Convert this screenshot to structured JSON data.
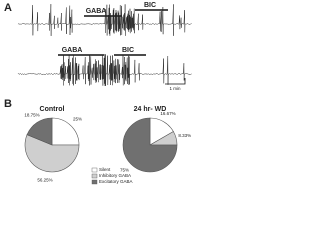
{
  "panel_a": {
    "label": "A",
    "traces": [
      {
        "gaba": "GABA",
        "bic": "BIC"
      },
      {
        "gaba": "GABA",
        "bic": "BIC"
      }
    ],
    "scale_bar": "1 min"
  },
  "panel_b": {
    "label": "B"
  },
  "chart_data": [
    {
      "type": "pie",
      "title": "Control",
      "categories": [
        "Silent",
        "Inhibitory GABA",
        "Excitatory GABA"
      ],
      "values": [
        25,
        56.25,
        18.75
      ],
      "value_labels": [
        "25%",
        "56.25%",
        "18.75%"
      ],
      "colors": [
        "#ffffff",
        "#cfcfcf",
        "#707070"
      ]
    },
    {
      "type": "pie",
      "title": "24 hr- WD",
      "categories": [
        "Silent",
        "Inhibitory GABA",
        "Excitatory GABA"
      ],
      "values": [
        16.67,
        8.33,
        75
      ],
      "value_labels": [
        "16.67%",
        "8.33%",
        "75%"
      ],
      "colors": [
        "#ffffff",
        "#cfcfcf",
        "#707070"
      ]
    }
  ]
}
